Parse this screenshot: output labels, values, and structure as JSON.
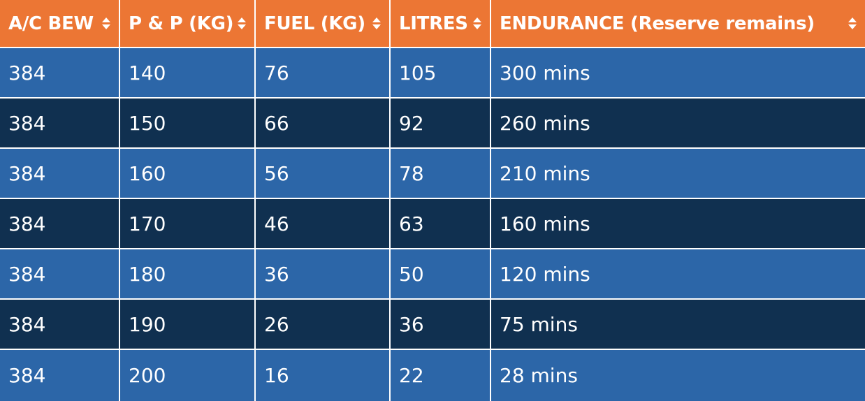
{
  "colors": {
    "header_bg": "#ec7634",
    "row_light": "#2c66a8",
    "row_dark": "#103050",
    "text": "#ffffff"
  },
  "table": {
    "headers": [
      {
        "label": "A/C BEW",
        "icon": "sort-icon"
      },
      {
        "label": "P & P (KG)",
        "icon": "sort-icon"
      },
      {
        "label": "FUEL (KG)",
        "icon": "sort-icon"
      },
      {
        "label": "LITRES",
        "icon": "sort-icon"
      },
      {
        "label": "ENDURANCE (Reserve remains)",
        "icon": "sort-icon"
      }
    ],
    "rows": [
      [
        "384",
        "140",
        "76",
        "105",
        "300 mins"
      ],
      [
        "384",
        "150",
        "66",
        "92",
        "260 mins"
      ],
      [
        "384",
        "160",
        "56",
        "78",
        "210 mins"
      ],
      [
        "384",
        "170",
        "46",
        "63",
        "160 mins"
      ],
      [
        "384",
        "180",
        "36",
        "50",
        "120 mins"
      ],
      [
        "384",
        "190",
        "26",
        "36",
        "75 mins"
      ],
      [
        "384",
        "200",
        "16",
        "22",
        "28 mins"
      ]
    ]
  }
}
